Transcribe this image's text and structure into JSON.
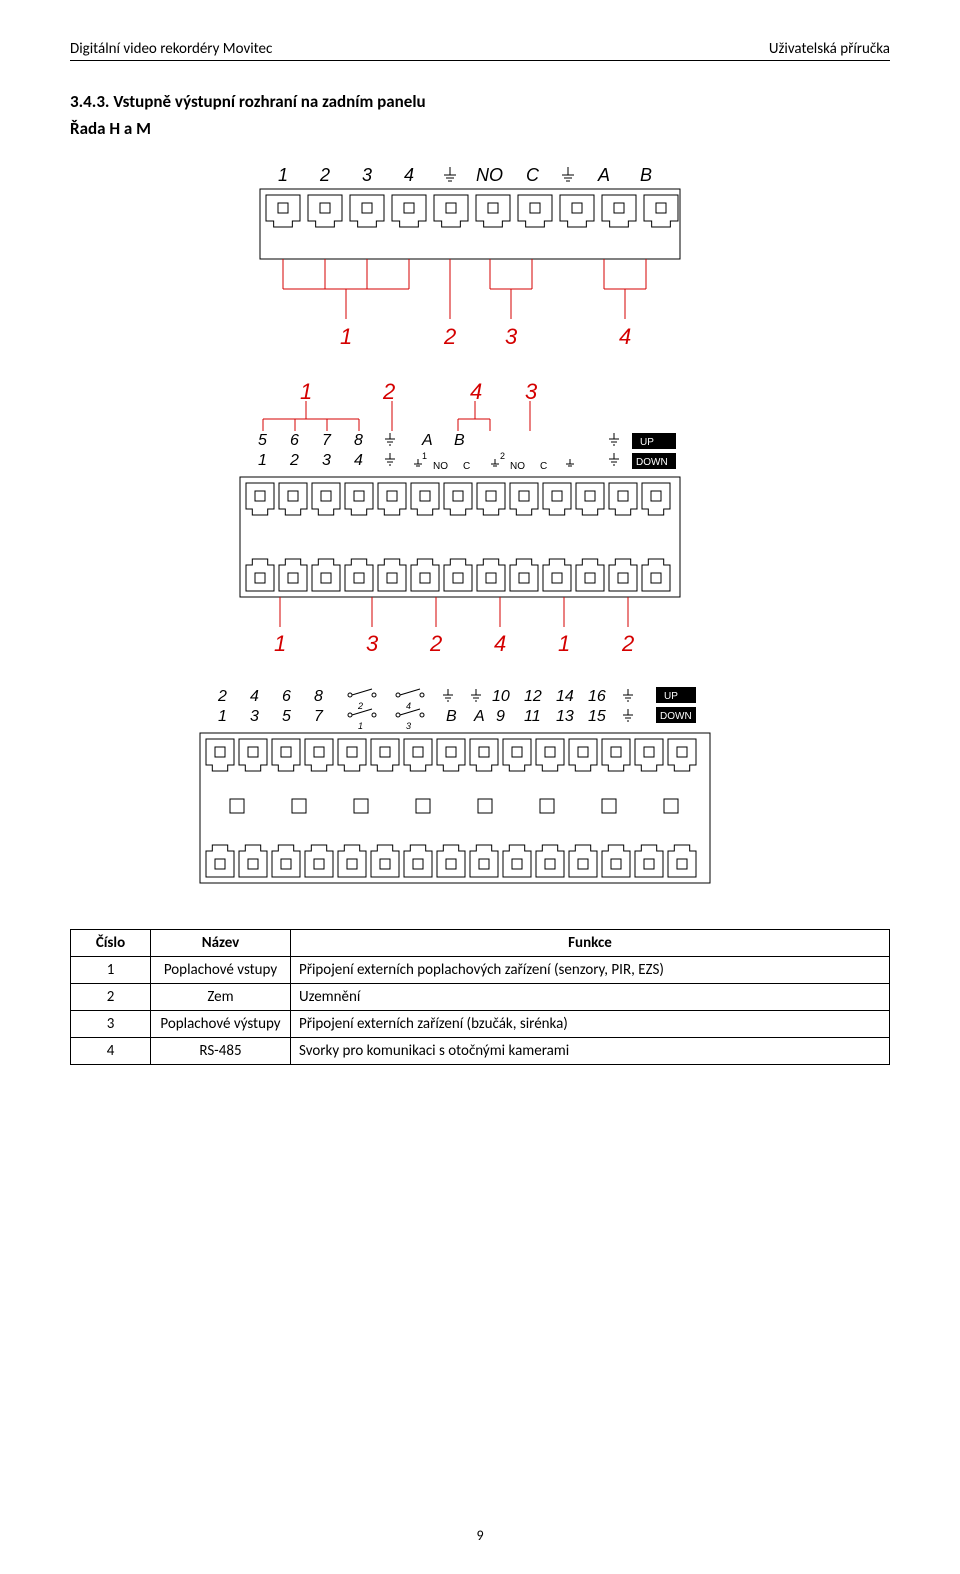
{
  "header": {
    "left": "Digitální video rekordéry Movitec",
    "right": "Uživatelská příručka"
  },
  "section": {
    "title": "3.4.3.  Vstupně výstupní rozhraní na zadním panelu",
    "subtitle": "Řada H a M"
  },
  "diagram1": {
    "top_labels": [
      "1",
      "2",
      "3",
      "4",
      "⏚",
      "NO",
      "C",
      "⏚",
      "A",
      "B"
    ],
    "red_labels": [
      "1",
      "2",
      "3",
      "4"
    ],
    "colors": {
      "red": "#d40000",
      "black": "#000000",
      "white": "#ffffff"
    }
  },
  "diagram2": {
    "red_top": [
      "1",
      "2",
      "4",
      "3"
    ],
    "row1": [
      "5",
      "6",
      "7",
      "8",
      "⏚",
      "A",
      "B"
    ],
    "row2": [
      "1",
      "2",
      "3",
      "4",
      "⏚"
    ],
    "sub": [
      "NO",
      "C",
      "NO",
      "C",
      "⏚"
    ],
    "sub_idx": [
      "1",
      "2"
    ],
    "updown": [
      "UP",
      "DOWN"
    ],
    "red_bottom": [
      "1",
      "3",
      "2",
      "4",
      "1",
      "2"
    ]
  },
  "diagram3": {
    "row1": [
      "2",
      "4",
      "6",
      "8",
      "⏚",
      "⏚",
      "10",
      "12",
      "14",
      "16",
      "⏚"
    ],
    "row2": [
      "1",
      "3",
      "5",
      "7",
      "B",
      "A",
      "9",
      "11",
      "13",
      "15",
      "⏚"
    ],
    "sw_top": [
      "2",
      "4"
    ],
    "sw_bot": [
      "1",
      "3"
    ],
    "updown": [
      "UP",
      "DOWN"
    ]
  },
  "table": {
    "headers": [
      "Číslo",
      "Název",
      "Funkce"
    ],
    "rows": [
      [
        "1",
        "Poplachové vstupy",
        "Připojení externích poplachových zařízení (senzory, PIR, EZS)"
      ],
      [
        "2",
        "Zem",
        "Uzemnění"
      ],
      [
        "3",
        "Poplachové výstupy",
        "Připojení externích zařízení (bzučák, sirénka)"
      ],
      [
        "4",
        "RS-485",
        "Svorky pro komunikaci s otočnými kamerami"
      ]
    ]
  },
  "footer": {
    "page": "9"
  }
}
